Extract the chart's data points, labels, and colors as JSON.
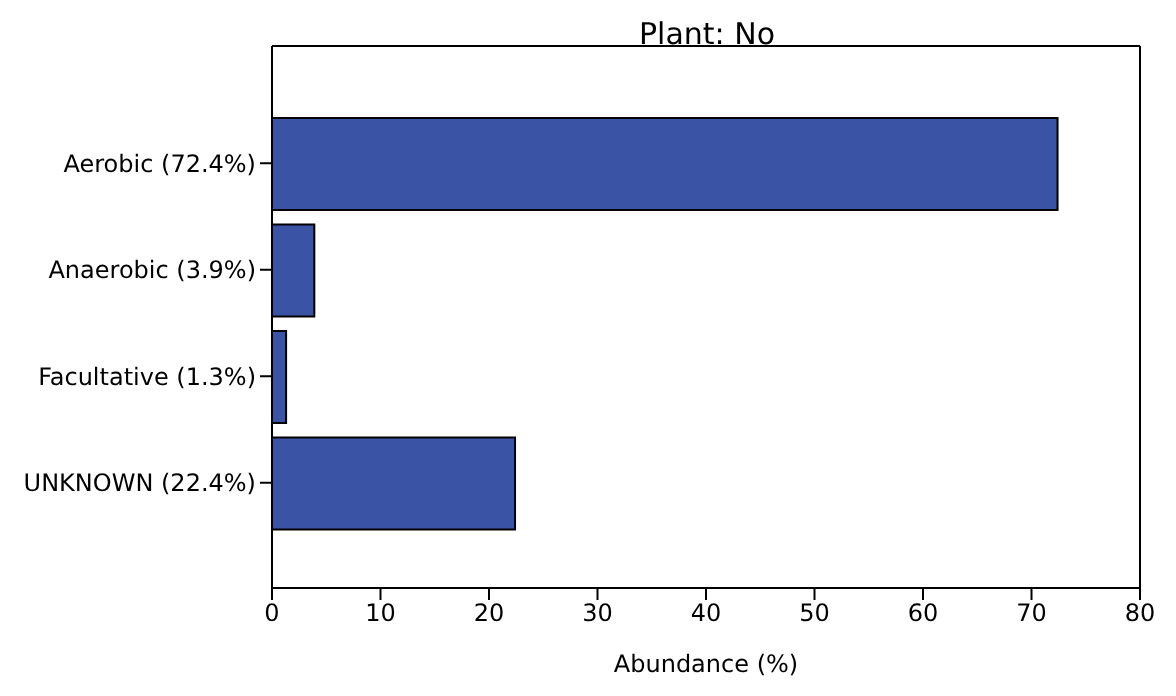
{
  "chart_data": {
    "type": "bar",
    "orientation": "horizontal",
    "title": "Plant: No",
    "xlabel": "Abundance (%)",
    "categories": [
      "Aerobic (72.4%)",
      "Anaerobic (3.9%)",
      "Facultative (1.3%)",
      "UNKNOWN (22.4%)"
    ],
    "values": [
      72.4,
      3.9,
      1.3,
      22.4
    ],
    "color": "#3a53a4",
    "xlim": [
      0,
      80
    ],
    "xticks": [
      0,
      10,
      20,
      30,
      40,
      50,
      60,
      70,
      80
    ],
    "grid": false
  }
}
